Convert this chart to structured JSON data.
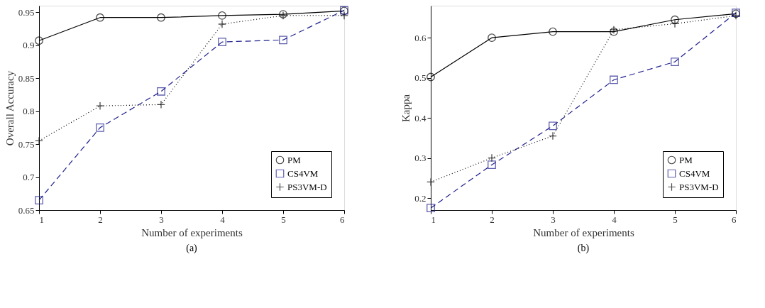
{
  "chart_data": [
    {
      "type": "line",
      "xlabel": "Number of experiments",
      "ylabel": "Overall Accuracy",
      "x": [
        1,
        2,
        3,
        4,
        5,
        6
      ],
      "xlim": [
        1,
        6
      ],
      "xticks": [
        1,
        2,
        3,
        4,
        5,
        6
      ],
      "ylim": [
        0.65,
        0.96
      ],
      "yticks": [
        0.65,
        {
          "value": 0.7,
          "label": "0.7"
        },
        0.75,
        {
          "value": 0.8,
          "label": "0.8"
        },
        0.85,
        {
          "value": 0.9,
          "label": "0.9"
        },
        0.95
      ],
      "grid": false,
      "legend": "bottom right",
      "annotations": [
        "(a)"
      ],
      "series": [
        {
          "name": "PM",
          "color": "#000000",
          "marker": "circle",
          "line_style": "solid",
          "values": [
            0.907,
            0.942,
            0.942,
            0.945,
            0.947,
            0.952
          ]
        },
        {
          "name": "CS4VM",
          "color": "#1f1f8f",
          "marker": "square",
          "line_style": "dashed",
          "values": [
            0.665,
            0.775,
            0.83,
            0.905,
            0.908,
            0.953
          ]
        },
        {
          "name": "PS3VM-D",
          "color": "#000000",
          "marker": "cross",
          "line_style": "dotted",
          "values": [
            0.755,
            0.808,
            0.81,
            0.932,
            0.945,
            0.945
          ]
        }
      ]
    },
    {
      "type": "line",
      "xlabel": "Number of experiments",
      "ylabel": "Kappa",
      "x": [
        1,
        2,
        3,
        4,
        5,
        6
      ],
      "xlim": [
        1,
        6
      ],
      "xticks": [
        1,
        2,
        3,
        4,
        5,
        6
      ],
      "ylim": [
        0.17,
        0.68
      ],
      "yticks": [
        0.2,
        0.3,
        0.4,
        0.5,
        0.6
      ],
      "grid": false,
      "legend": "bottom right",
      "annotations": [
        "(b)"
      ],
      "series": [
        {
          "name": "PM",
          "color": "#000000",
          "marker": "circle",
          "line_style": "solid",
          "values": [
            0.502,
            0.6,
            0.615,
            0.615,
            0.645,
            0.66
          ]
        },
        {
          "name": "CS4VM",
          "color": "#1f1f8f",
          "marker": "square",
          "line_style": "dashed",
          "values": [
            0.175,
            0.283,
            0.38,
            0.495,
            0.54,
            0.662
          ]
        },
        {
          "name": "PS3VM-D",
          "color": "#000000",
          "marker": "cross",
          "line_style": "dotted",
          "values": [
            0.24,
            0.3,
            0.355,
            0.62,
            0.635,
            0.655
          ]
        }
      ]
    }
  ]
}
